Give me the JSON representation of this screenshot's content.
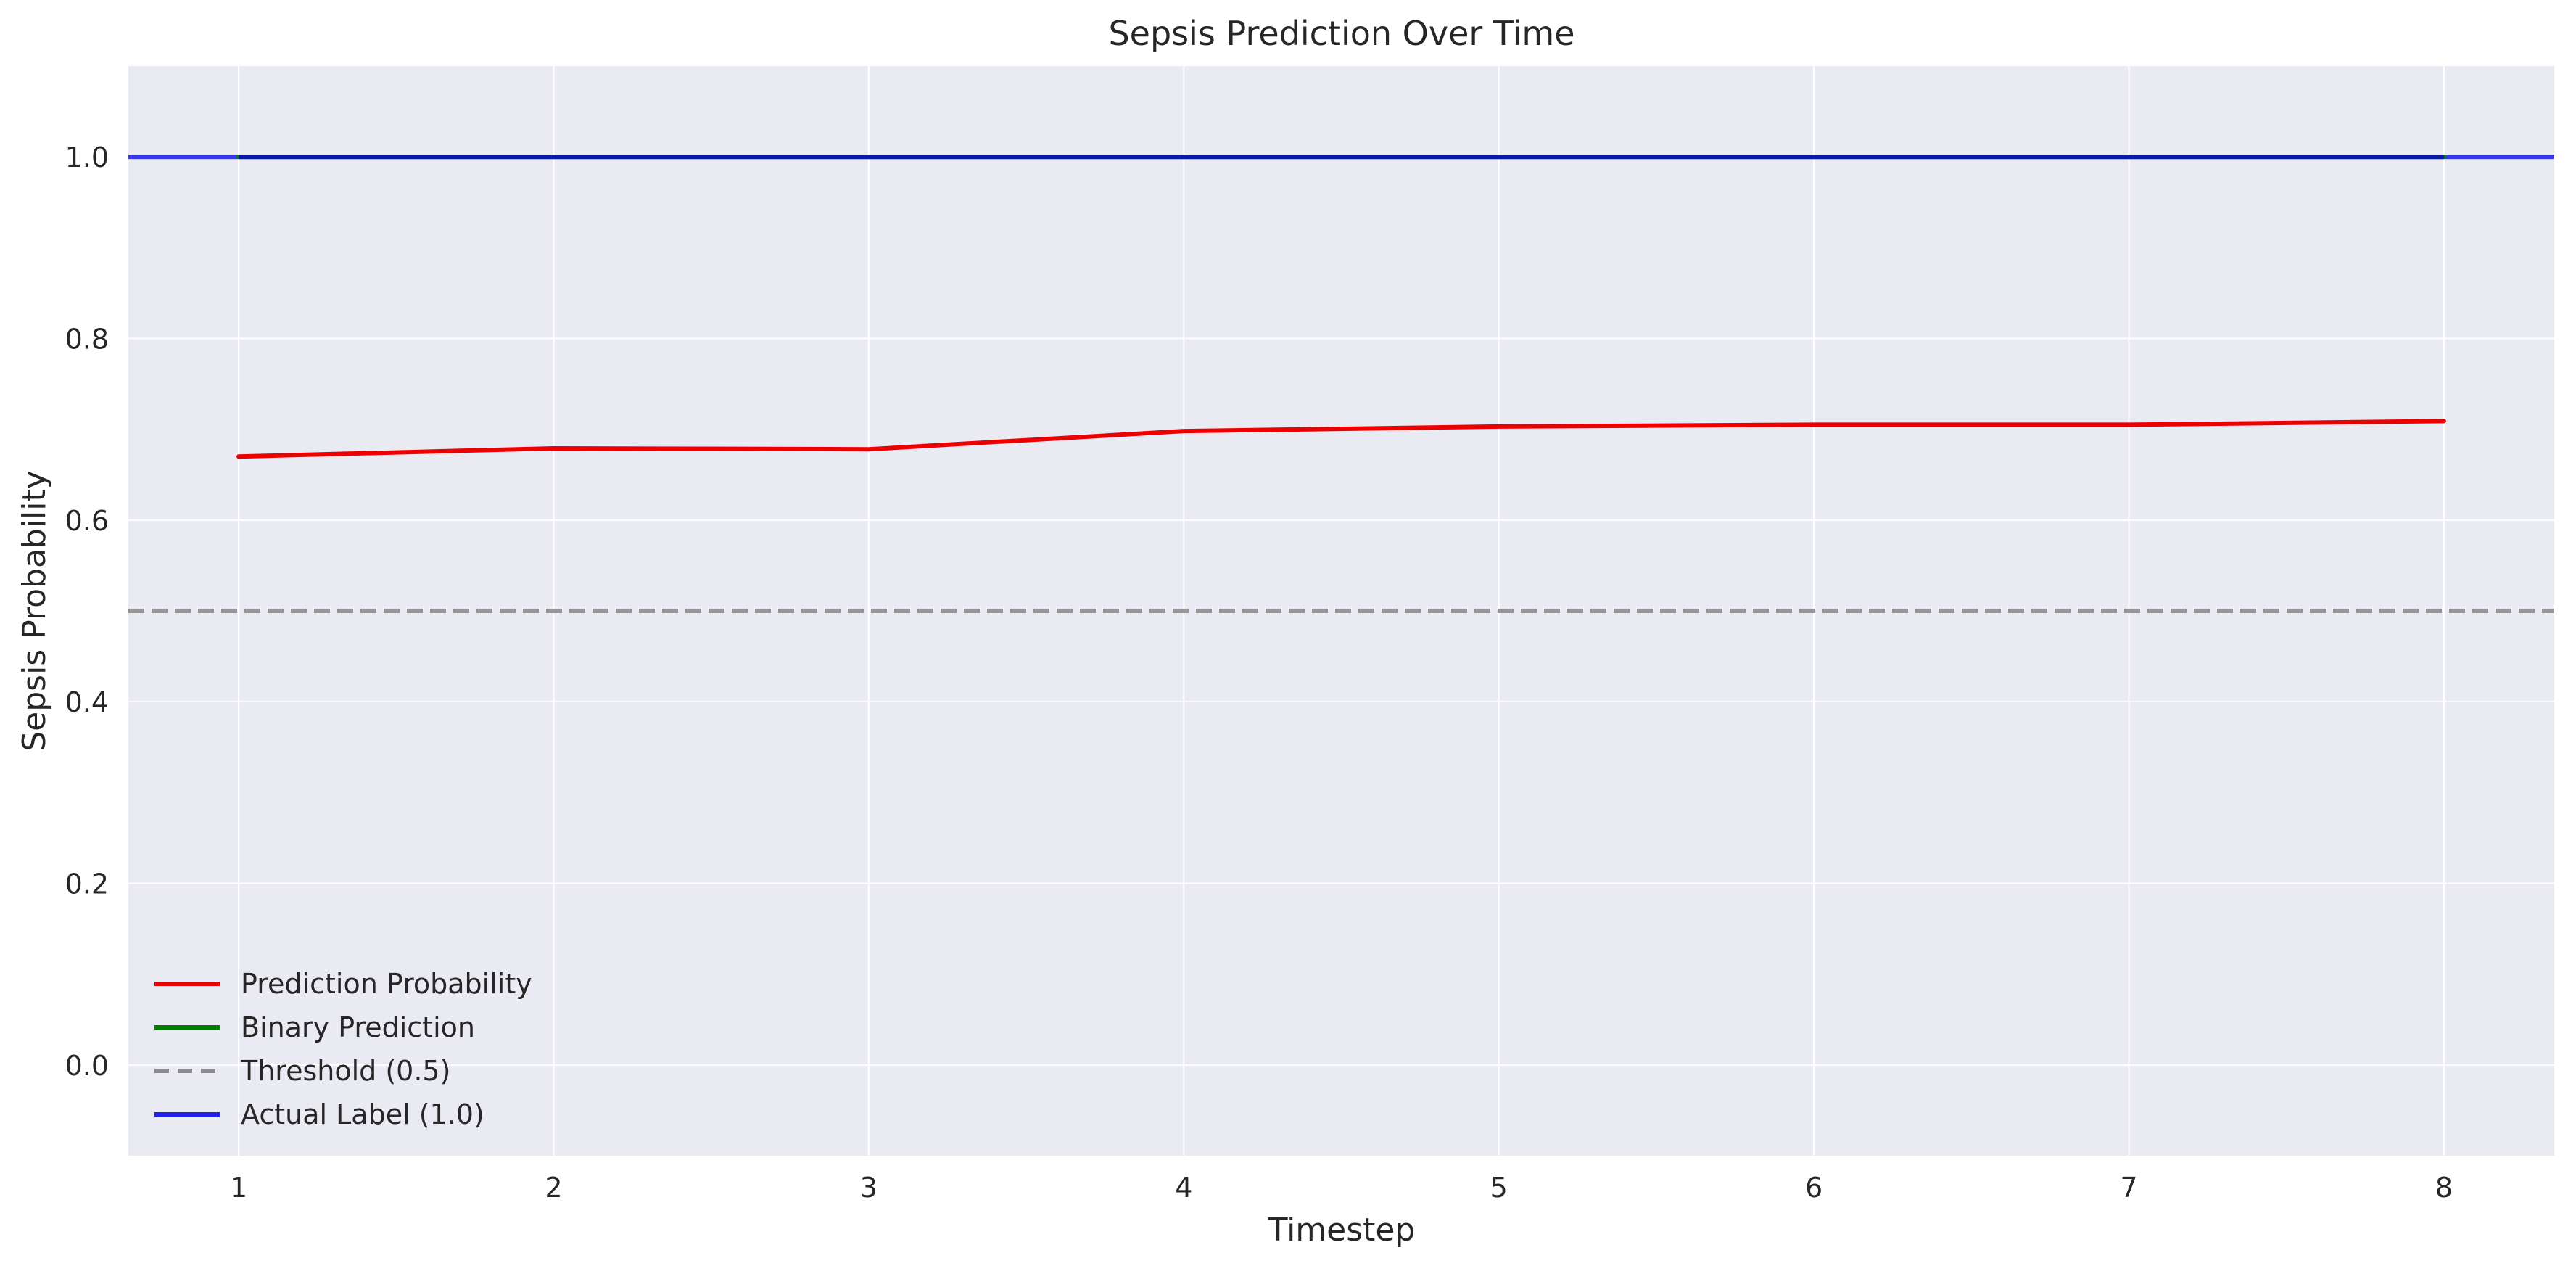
{
  "chart_data": {
    "type": "line",
    "title": "Sepsis Prediction Over Time",
    "xlabel": "Timestep",
    "ylabel": "Sepsis Probability",
    "xlim": [
      0.65,
      8.35
    ],
    "ylim": [
      -0.1,
      1.1
    ],
    "x_ticks": [
      1,
      2,
      3,
      4,
      5,
      6,
      7,
      8
    ],
    "y_ticks": [
      0.0,
      0.2,
      0.4,
      0.6,
      0.8,
      1.0
    ],
    "y_tick_labels": [
      "0.0",
      "0.2",
      "0.4",
      "0.6",
      "0.8",
      "1.0"
    ],
    "x": [
      1,
      2,
      3,
      4,
      5,
      6,
      7,
      8
    ],
    "grid": true,
    "legend_position": "lower-left",
    "series": [
      {
        "name": "Prediction Probability",
        "color": "#ee0000",
        "style": "solid",
        "values": [
          0.67,
          0.679,
          0.678,
          0.698,
          0.703,
          0.705,
          0.705,
          0.709
        ]
      },
      {
        "name": "Binary Prediction",
        "color": "#008000",
        "style": "solid",
        "values": [
          1,
          1,
          1,
          1,
          1,
          1,
          1,
          1
        ]
      }
    ],
    "reference_lines": [
      {
        "name": "Threshold (0.5)",
        "y": 0.5,
        "color": "#8c8c8c",
        "style": "dashed"
      },
      {
        "name": "Actual Label (1.0)",
        "y": 1.0,
        "color": "#2222ee",
        "style": "solid"
      }
    ],
    "colors": {
      "background": "#eaeaf2",
      "grid": "#ffffff"
    }
  }
}
